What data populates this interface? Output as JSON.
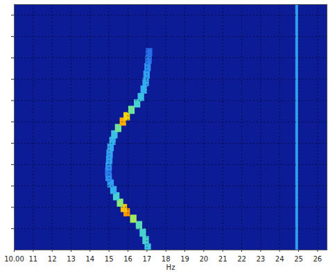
{
  "chart_data": {
    "type": "heatmap",
    "x_label": "Hz",
    "xlim": [
      10,
      26.5
    ],
    "xticks": [
      {
        "value": 10,
        "label": "10.00"
      },
      11,
      12,
      13,
      14,
      15,
      16,
      17,
      18,
      19,
      20,
      21,
      22,
      23,
      24,
      25,
      26
    ],
    "ylim": [
      0,
      11.5
    ],
    "yticks": [
      1,
      2,
      3,
      4,
      5,
      6,
      7,
      8,
      9,
      10,
      11
    ],
    "tick_labels": "x",
    "grid": true,
    "zlim": [
      0,
      1
    ],
    "cells": [
      [
        17.06,
        0.1,
        0.35
      ],
      [
        16.95,
        0.45,
        0.4
      ],
      [
        16.8,
        0.8,
        0.4
      ],
      [
        16.6,
        1.15,
        0.45
      ],
      [
        16.3,
        1.45,
        0.6
      ],
      [
        15.95,
        1.75,
        0.95
      ],
      [
        15.8,
        1.95,
        0.85
      ],
      [
        15.6,
        2.2,
        0.55
      ],
      [
        15.4,
        2.5,
        0.4
      ],
      [
        15.25,
        2.8,
        0.3
      ],
      [
        15.1,
        3.1,
        0.25
      ],
      [
        15.0,
        3.4,
        0.2
      ],
      [
        14.98,
        3.65,
        0.15
      ],
      [
        15.0,
        3.9,
        0.2
      ],
      [
        15.03,
        4.2,
        0.25
      ],
      [
        15.05,
        4.5,
        0.25
      ],
      [
        15.1,
        4.8,
        0.28
      ],
      [
        15.2,
        5.1,
        0.3
      ],
      [
        15.3,
        5.4,
        0.35
      ],
      [
        15.5,
        5.7,
        0.5
      ],
      [
        15.75,
        6.0,
        0.9
      ],
      [
        15.95,
        6.25,
        0.8
      ],
      [
        16.2,
        6.55,
        0.5
      ],
      [
        16.5,
        6.85,
        0.4
      ],
      [
        16.7,
        7.15,
        0.35
      ],
      [
        16.85,
        7.5,
        0.3
      ],
      [
        16.95,
        7.85,
        0.28
      ],
      [
        17.0,
        8.2,
        0.25
      ],
      [
        17.05,
        8.55,
        0.2
      ],
      [
        17.1,
        8.9,
        0.15
      ],
      [
        17.13,
        9.25,
        0.12
      ]
    ],
    "lines": [
      {
        "x": 24.9,
        "value": 0.25
      }
    ]
  }
}
